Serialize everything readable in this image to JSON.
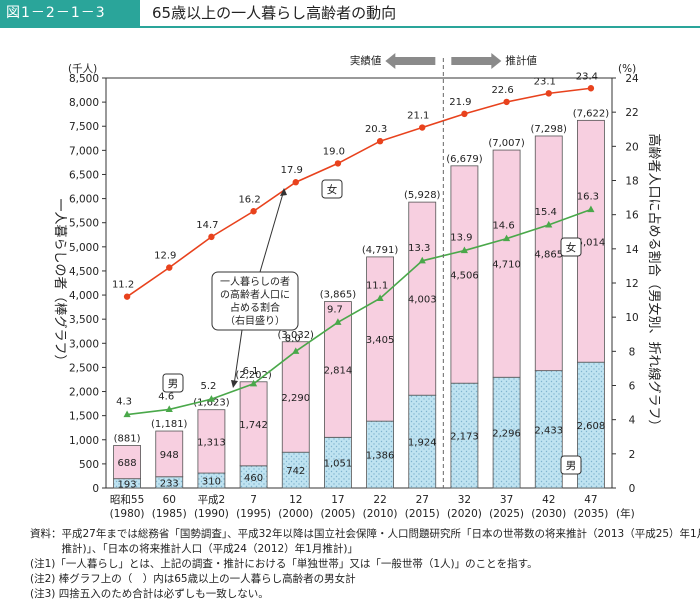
{
  "figure": {
    "number": "図1－2－1－3",
    "title": "65歳以上の一人暮らし高齢者の動向",
    "accent_color": "#2aa59a"
  },
  "chart_data": {
    "type": "bar",
    "categories": [
      {
        "era": "昭和55",
        "year": "(1980)"
      },
      {
        "era": "60",
        "year": "(1985)"
      },
      {
        "era": "平成2",
        "year": "(1990)"
      },
      {
        "era": "7",
        "year": "(1995)"
      },
      {
        "era": "12",
        "year": "(2000)"
      },
      {
        "era": "17",
        "year": "(2005)"
      },
      {
        "era": "22",
        "year": "(2010)"
      },
      {
        "era": "27",
        "year": "(2015)"
      },
      {
        "era": "32",
        "year": "(2020)"
      },
      {
        "era": "37",
        "year": "(2025)"
      },
      {
        "era": "42",
        "year": "(2030)"
      },
      {
        "era": "47",
        "year": "(2035)"
      }
    ],
    "male_counts": [
      193,
      233,
      310,
      460,
      742,
      1051,
      1386,
      1924,
      2173,
      2296,
      2433,
      2608
    ],
    "female_counts": [
      688,
      948,
      1313,
      1742,
      2290,
      2814,
      3405,
      4003,
      4506,
      4710,
      4865,
      5014
    ],
    "totals": [
      "(881)",
      "(1,181)",
      "(1,623)",
      "(2,202)",
      "(3,032)",
      "(3,865)",
      "(4,791)",
      "(5,928)",
      "(6,679)",
      "(7,007)",
      "(7,298)",
      "(7,622)"
    ],
    "female_ratio": [
      11.2,
      12.9,
      14.7,
      16.2,
      17.9,
      19.0,
      20.3,
      21.1,
      21.9,
      22.6,
      23.1,
      23.4
    ],
    "male_ratio": [
      4.3,
      4.6,
      5.2,
      6.1,
      8.0,
      9.7,
      11.1,
      13.3,
      13.9,
      14.6,
      15.4,
      16.3
    ],
    "left_axis": {
      "unit": "(千人)",
      "ylim": [
        0,
        8500
      ],
      "ticks": [
        "0",
        "500",
        "1,000",
        "1,500",
        "2,000",
        "2,500",
        "3,000",
        "3,500",
        "4,000",
        "4,500",
        "5,000",
        "5,500",
        "6,000",
        "6,500",
        "7,000",
        "7,500",
        "8,000",
        "8,500"
      ],
      "title": "一人暮らしの者（棒グラフ）"
    },
    "right_axis": {
      "unit": "(%)",
      "ylim": [
        0,
        24
      ],
      "ticks": [
        "0",
        "2",
        "4",
        "6",
        "8",
        "10",
        "12",
        "14",
        "16",
        "18",
        "20",
        "22",
        "24"
      ],
      "title": "高齢者人口に占める割合（男女別、折れ線グラフ）"
    },
    "x_unit": "(年)",
    "projection_start_index": 8,
    "actual_label": "実績値",
    "projected_label": "推計値",
    "legend": {
      "female": "女",
      "male": "男",
      "ratio_callout": [
        "一人暮らしの者",
        "の高齢者人口に",
        "占める割合",
        "（右目盛り）"
      ]
    },
    "colors": {
      "female_bar": "#f7cfe0",
      "male_bar": "#bfe3f1",
      "female_line": "#e8421d",
      "male_line": "#4aa84a",
      "divider": "#666666",
      "arrow": "#8a8a8a"
    }
  },
  "notes": [
    "資料：平成27年までは総務省「国勢調査」、平成32年以降は国立社会保障・人口問題研究所「日本の世帯数の将来推計（2013（平成25）年1月",
    "　　　推計)」、「日本の将来推計人口（平成24（2012）年1月推計)」",
    "(注1)「一人暮らし」とは、上記の調査・推計における「単独世帯」又は「一般世帯（1人)」のことを指す。",
    "(注2) 棒グラフ上の（　）内は65歳以上の一人暮らし高齢者の男女計",
    "(注3) 四捨五入のため合計は必ずしも一致しない。"
  ]
}
